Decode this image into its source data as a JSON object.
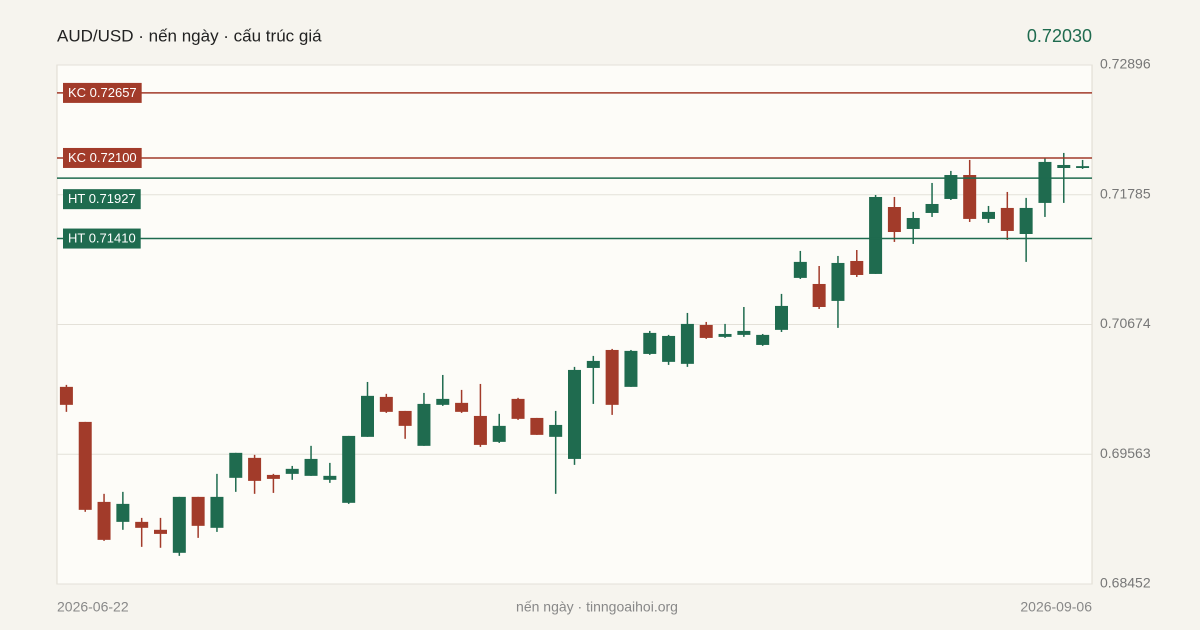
{
  "chart_data": {
    "type": "candlestick",
    "title": "AUD/USD · nến ngày · cấu trúc giá",
    "last_price": {
      "value": 0.7203,
      "label": "0.72030"
    },
    "footer": "nến ngày · tinngoaihoi.org",
    "categories": [
      "2026-06-22",
      null,
      null,
      null,
      null,
      null,
      null,
      null,
      null,
      null,
      null,
      null,
      null,
      null,
      null,
      null,
      null,
      null,
      null,
      null,
      null,
      null,
      null,
      null,
      null,
      null,
      null,
      null,
      null,
      null,
      null,
      null,
      null,
      null,
      null,
      null,
      null,
      null,
      null,
      null,
      null,
      null,
      null,
      null,
      null,
      null,
      null,
      null,
      null,
      null,
      null,
      null,
      null,
      null,
      "2026-09-06"
    ],
    "open": [
      0.7014,
      0.6984,
      0.69155,
      0.68984,
      0.68984,
      0.68916,
      0.68719,
      0.69198,
      0.68933,
      0.69361,
      0.69532,
      0.69386,
      0.69395,
      0.69378,
      0.69344,
      0.69147,
      0.69712,
      0.70054,
      0.69934,
      0.69635,
      0.69986,
      0.70003,
      0.69891,
      0.69669,
      0.70037,
      0.69874,
      0.69712,
      0.69523,
      0.70302,
      0.70456,
      0.7014,
      0.70422,
      0.70354,
      0.70337,
      0.7067,
      0.70568,
      0.70585,
      0.70499,
      0.70628,
      0.71073,
      0.71021,
      0.70876,
      0.71218,
      0.71107,
      0.7168,
      0.71492,
      0.71629,
      0.71749,
      0.71954,
      0.71578,
      0.71672,
      0.71449,
      0.71715,
      0.72014,
      0.72014
    ],
    "high": [
      0.70157,
      0.6984,
      0.69224,
      0.69241,
      0.69018,
      0.69018,
      0.69198,
      0.69198,
      0.69395,
      0.69575,
      0.69558,
      0.69395,
      0.69463,
      0.69635,
      0.69489,
      0.6972,
      0.70182,
      0.7008,
      0.69934,
      0.70088,
      0.70242,
      0.70114,
      0.70165,
      0.69909,
      0.70046,
      0.69874,
      0.69934,
      0.70311,
      0.70405,
      0.70465,
      0.70456,
      0.70619,
      0.70585,
      0.70773,
      0.70696,
      0.70679,
      0.70824,
      0.70593,
      0.70936,
      0.71304,
      0.71175,
      0.71261,
      0.71312,
      0.71783,
      0.71766,
      0.71638,
      0.71886,
      0.71989,
      0.72083,
      0.71689,
      0.71809,
      0.71758,
      0.721,
      0.72143,
      0.72083
    ],
    "low": [
      0.69926,
      0.6907,
      0.68821,
      0.68916,
      0.6877,
      0.68762,
      0.68693,
      0.68847,
      0.68898,
      0.69241,
      0.69224,
      0.69232,
      0.69344,
      0.69378,
      0.69318,
      0.69138,
      0.69712,
      0.69917,
      0.69695,
      0.69635,
      0.69977,
      0.69917,
      0.69626,
      0.6966,
      0.69857,
      0.69729,
      0.69224,
      0.69472,
      0.69994,
      0.699,
      0.7014,
      0.70414,
      0.70328,
      0.70311,
      0.70551,
      0.70559,
      0.70568,
      0.70491,
      0.7061,
      0.71064,
      0.70807,
      0.70645,
      0.71081,
      0.71107,
      0.71381,
      0.71364,
      0.71595,
      0.7174,
      0.71552,
      0.71544,
      0.71398,
      0.7121,
      0.71595,
      0.71715,
      0.72006
    ],
    "close": [
      0.69986,
      0.69087,
      0.6883,
      0.69138,
      0.68933,
      0.68881,
      0.69198,
      0.6895,
      0.69198,
      0.69575,
      0.69335,
      0.69352,
      0.69438,
      0.69523,
      0.69378,
      0.6972,
      0.70063,
      0.69926,
      0.69806,
      0.69994,
      0.70037,
      0.69926,
      0.69643,
      0.69806,
      0.69866,
      0.69729,
      0.69814,
      0.70285,
      0.70362,
      0.69986,
      0.70448,
      0.70602,
      0.70576,
      0.70679,
      0.70559,
      0.70593,
      0.70619,
      0.70585,
      0.70833,
      0.7121,
      0.70824,
      0.71201,
      0.71098,
      0.71766,
      0.71466,
      0.71586,
      0.71706,
      0.71954,
      0.71578,
      0.71638,
      0.71475,
      0.71672,
      0.72066,
      0.7204,
      0.7203
    ],
    "up_color": "#1f6b4f",
    "down_color": "#a23b2a",
    "levels": [
      {
        "value": 0.72657,
        "label": "KC 0.72657",
        "color": "#a23b2a"
      },
      {
        "value": 0.721,
        "label": "KC 0.72100",
        "color": "#a23b2a"
      },
      {
        "value": 0.71927,
        "label": "HT 0.71927",
        "color": "#1f6b4f"
      },
      {
        "value": 0.7141,
        "label": "HT 0.71410",
        "color": "#1f6b4f"
      }
    ],
    "ylim": [
      0.68452,
      0.72896
    ],
    "yticks": [
      0.68452,
      0.69563,
      0.70674,
      0.71785,
      0.72896
    ],
    "grid": true
  }
}
